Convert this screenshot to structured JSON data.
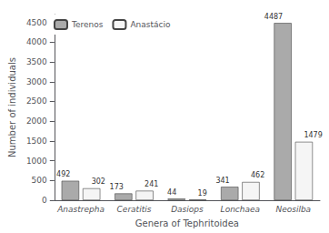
{
  "chart_data": {
    "type": "bar",
    "xlabel": "Genera of Tephritoidea",
    "ylabel": "Number of individuals",
    "categories": [
      "Anastrepha",
      "Ceratitis",
      "Dasiops",
      "Lonchaea",
      "Neosilba"
    ],
    "series": [
      {
        "name": "Terenos",
        "color": "#aaaaaa",
        "values": [
          492,
          173,
          44,
          341,
          4487
        ]
      },
      {
        "name": "Anastácio",
        "color": "#f5f5f5",
        "values": [
          302,
          241,
          19,
          462,
          1479
        ]
      }
    ],
    "ylim": [
      0,
      4700
    ],
    "yticks": [
      0,
      500,
      1000,
      1500,
      2000,
      2500,
      3000,
      3500,
      4000,
      4500
    ],
    "grid": false,
    "legend": "upper left",
    "data_labels": true
  }
}
